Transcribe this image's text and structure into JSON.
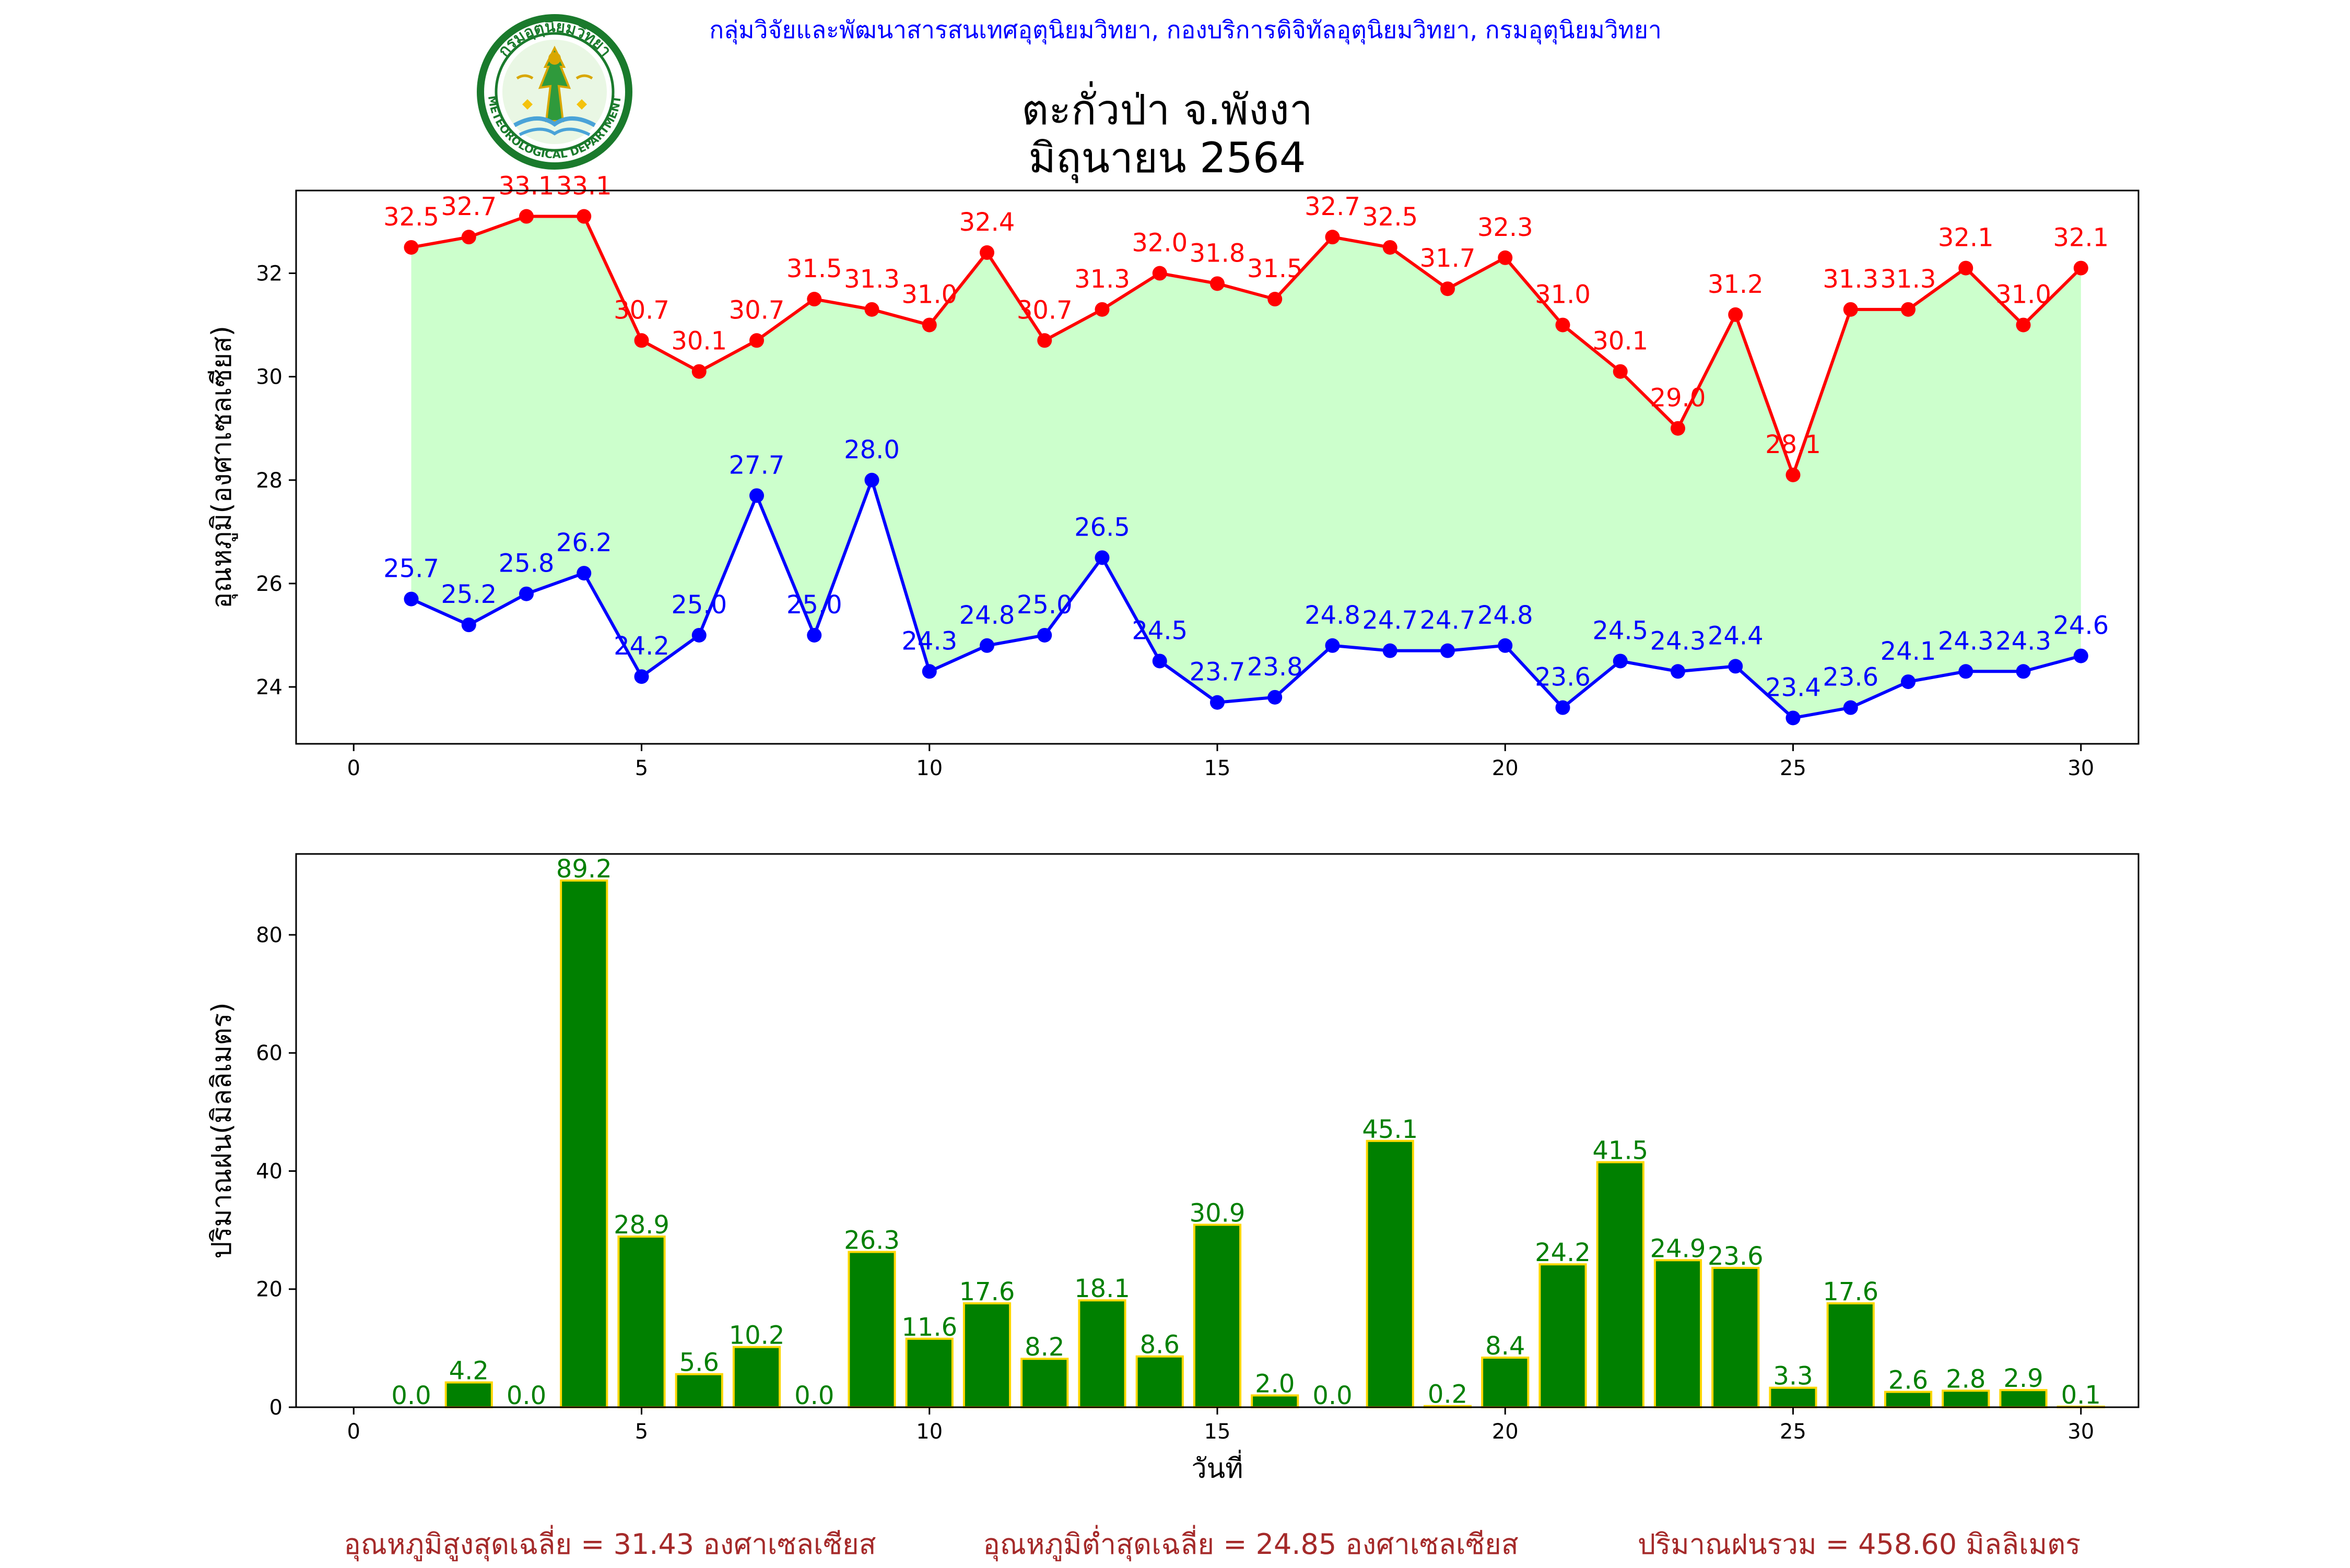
{
  "header": {
    "org_line": "กลุ่มวิจัยและพัฒนาสารสนเทศอุตุนิยมวิทยา, กองบริการดิจิทัลอุตุนิยมวิทยา, กรมอุตุนิยมวิทยา",
    "title_line1": "ตะกั่วป่า จ.พังงา",
    "title_line2": "มิถุนายน 2564",
    "logo_top_text": "กรมอุตุนิยมวิทยา",
    "logo_bottom_text": "METEOROLOGICAL DEPARTMENT"
  },
  "colors": {
    "max_temp": "#ff0000",
    "min_temp": "#0000ff",
    "fill": "#ccffcc",
    "bar": "#008000",
    "bar_edge": "#ffd700",
    "org_text": "#0000ff",
    "summary_text": "#a52a2a"
  },
  "summary": {
    "max_avg": "อุณหภูมิสูงสุดเฉลี่ย = 31.43 องศาเซลเซียส",
    "min_avg": "อุณหภูมิต่ำสุดเฉลี่ย = 24.85 องศาเซลเซียส",
    "rain_total": "ปริมาณฝนรวม = 458.60 มิลลิเมตร"
  },
  "chart_data": [
    {
      "type": "line",
      "ylabel": "อุณหภูมิ(องศาเซลเซียส)",
      "xlabel": "",
      "xlim": [
        -1,
        31
      ],
      "ylim": [
        22.9,
        33.6
      ],
      "xticks": [
        0,
        5,
        10,
        15,
        20,
        25,
        30
      ],
      "yticks": [
        24,
        26,
        28,
        30,
        32
      ],
      "x": [
        1,
        2,
        3,
        4,
        5,
        6,
        7,
        8,
        9,
        10,
        11,
        12,
        13,
        14,
        15,
        16,
        17,
        18,
        19,
        20,
        21,
        22,
        23,
        24,
        25,
        26,
        27,
        28,
        29,
        30
      ],
      "series": [
        {
          "key": "max",
          "values": [
            32.5,
            32.7,
            33.1,
            33.1,
            30.7,
            30.1,
            30.7,
            31.5,
            31.3,
            31.0,
            32.4,
            30.7,
            31.3,
            32.0,
            31.8,
            31.5,
            32.7,
            32.5,
            31.7,
            32.3,
            31.0,
            30.1,
            29.0,
            31.2,
            28.1,
            31.3,
            31.3,
            32.1,
            31.0,
            32.1
          ]
        },
        {
          "key": "min",
          "values": [
            25.7,
            25.2,
            25.8,
            26.2,
            24.2,
            25.0,
            27.7,
            25.0,
            28.0,
            24.3,
            24.8,
            25.0,
            26.5,
            24.5,
            23.7,
            23.8,
            24.8,
            24.7,
            24.7,
            24.8,
            23.6,
            24.5,
            24.3,
            24.4,
            23.4,
            23.6,
            24.1,
            24.3,
            24.3,
            24.6
          ]
        }
      ],
      "grid": false
    },
    {
      "type": "bar",
      "ylabel": "ปริมาณฝน(มิลลิเมตร)",
      "xlabel": "วันที่",
      "xlim": [
        -1,
        31
      ],
      "ylim": [
        0,
        93.7
      ],
      "xticks": [
        0,
        5,
        10,
        15,
        20,
        25,
        30
      ],
      "yticks": [
        0,
        20,
        40,
        60,
        80
      ],
      "categories": [
        1,
        2,
        3,
        4,
        5,
        6,
        7,
        8,
        9,
        10,
        11,
        12,
        13,
        14,
        15,
        16,
        17,
        18,
        19,
        20,
        21,
        22,
        23,
        24,
        25,
        26,
        27,
        28,
        29,
        30
      ],
      "values": [
        0.0,
        4.2,
        0.0,
        89.2,
        28.9,
        5.6,
        10.2,
        0.0,
        26.3,
        11.6,
        17.6,
        8.2,
        18.1,
        8.6,
        30.9,
        2.0,
        0.0,
        45.1,
        0.2,
        8.4,
        24.2,
        41.5,
        24.9,
        23.6,
        3.3,
        17.6,
        2.6,
        2.8,
        2.9,
        0.1
      ],
      "grid": false
    }
  ]
}
